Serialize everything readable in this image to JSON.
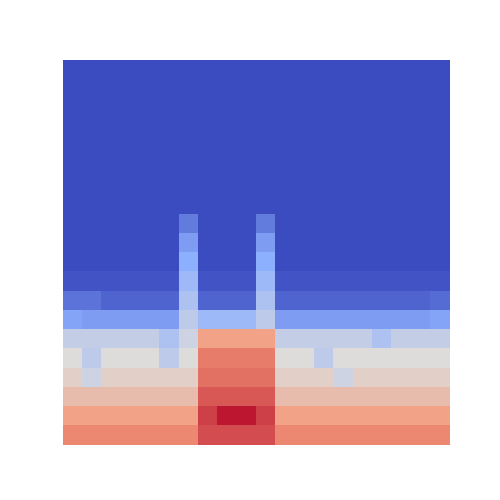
{
  "chart_data": {
    "type": "heatmap",
    "tick_labels": false,
    "zlim": [
      0,
      1
    ],
    "cells": [
      [
        0,
        0,
        0,
        0,
        0,
        0,
        0,
        0,
        0,
        0,
        0,
        0,
        0,
        0,
        0,
        0,
        0,
        0,
        0,
        0
      ],
      [
        0,
        0,
        0,
        0,
        0,
        0,
        0,
        0,
        0,
        0,
        0,
        0,
        0,
        0,
        0,
        0,
        0,
        0,
        0,
        0
      ],
      [
        0,
        0,
        0,
        0,
        0,
        0,
        0,
        0,
        0,
        0,
        0,
        0,
        0,
        0,
        0,
        0,
        0,
        0,
        0,
        0
      ],
      [
        0,
        0,
        0,
        0,
        0,
        0,
        0,
        0,
        0,
        0,
        0,
        0,
        0,
        0,
        0,
        0,
        0,
        0,
        0,
        0
      ],
      [
        0,
        0,
        0,
        0,
        0,
        0,
        0,
        0,
        0,
        0,
        0,
        0,
        0,
        0,
        0,
        0,
        0,
        0,
        0,
        0
      ],
      [
        0,
        0,
        0,
        0,
        0,
        0,
        0,
        0,
        0,
        0,
        0,
        0,
        0,
        0,
        0,
        0,
        0,
        0,
        0,
        0
      ],
      [
        0,
        0,
        0,
        0,
        0,
        0,
        0,
        0,
        0,
        0,
        0,
        0,
        0,
        0,
        0,
        0,
        0,
        0,
        0,
        0
      ],
      [
        0,
        0,
        0,
        0,
        0,
        0,
        0,
        0,
        0,
        0,
        0,
        0,
        0,
        0,
        0,
        0,
        0,
        0,
        0,
        0
      ],
      [
        0,
        0,
        0,
        0,
        0,
        0,
        0.12,
        0,
        0,
        0,
        0.12,
        0,
        0,
        0,
        0,
        0,
        0,
        0,
        0,
        0
      ],
      [
        0,
        0,
        0,
        0,
        0,
        0,
        0.2,
        0,
        0,
        0,
        0.2,
        0,
        0,
        0,
        0,
        0,
        0,
        0,
        0,
        0
      ],
      [
        0,
        0,
        0,
        0,
        0,
        0,
        0.25,
        0,
        0,
        0,
        0.25,
        0,
        0,
        0,
        0,
        0,
        0,
        0,
        0,
        0
      ],
      [
        0.02,
        0.02,
        0.02,
        0.02,
        0.02,
        0.02,
        0.3,
        0.02,
        0.02,
        0.02,
        0.3,
        0.02,
        0.02,
        0.02,
        0.02,
        0.02,
        0.02,
        0.02,
        0.02,
        0.02
      ],
      [
        0.1,
        0.1,
        0.06,
        0.06,
        0.06,
        0.06,
        0.35,
        0.06,
        0.06,
        0.06,
        0.35,
        0.06,
        0.06,
        0.06,
        0.06,
        0.06,
        0.06,
        0.06,
        0.06,
        0.08
      ],
      [
        0.22,
        0.2,
        0.2,
        0.2,
        0.2,
        0.2,
        0.4,
        0.3,
        0.3,
        0.3,
        0.4,
        0.2,
        0.2,
        0.2,
        0.2,
        0.2,
        0.2,
        0.2,
        0.2,
        0.22
      ],
      [
        0.42,
        0.42,
        0.42,
        0.42,
        0.42,
        0.35,
        0.45,
        0.72,
        0.72,
        0.72,
        0.72,
        0.42,
        0.42,
        0.42,
        0.42,
        0.42,
        0.35,
        0.42,
        0.42,
        0.42
      ],
      [
        0.5,
        0.4,
        0.5,
        0.5,
        0.5,
        0.4,
        0.5,
        0.8,
        0.8,
        0.8,
        0.8,
        0.5,
        0.5,
        0.4,
        0.5,
        0.5,
        0.5,
        0.5,
        0.5,
        0.5
      ],
      [
        0.55,
        0.45,
        0.55,
        0.55,
        0.55,
        0.55,
        0.55,
        0.82,
        0.82,
        0.82,
        0.82,
        0.55,
        0.55,
        0.55,
        0.45,
        0.55,
        0.55,
        0.55,
        0.55,
        0.55
      ],
      [
        0.62,
        0.62,
        0.62,
        0.62,
        0.62,
        0.62,
        0.62,
        0.86,
        0.86,
        0.86,
        0.86,
        0.62,
        0.62,
        0.62,
        0.62,
        0.62,
        0.62,
        0.62,
        0.62,
        0.62
      ],
      [
        0.72,
        0.72,
        0.72,
        0.72,
        0.72,
        0.72,
        0.72,
        0.9,
        0.97,
        0.97,
        0.9,
        0.72,
        0.72,
        0.72,
        0.72,
        0.72,
        0.72,
        0.72,
        0.72,
        0.72
      ],
      [
        0.78,
        0.78,
        0.78,
        0.78,
        0.78,
        0.78,
        0.78,
        0.88,
        0.88,
        0.88,
        0.88,
        0.78,
        0.78,
        0.78,
        0.78,
        0.78,
        0.78,
        0.78,
        0.78,
        0.78
      ]
    ]
  }
}
